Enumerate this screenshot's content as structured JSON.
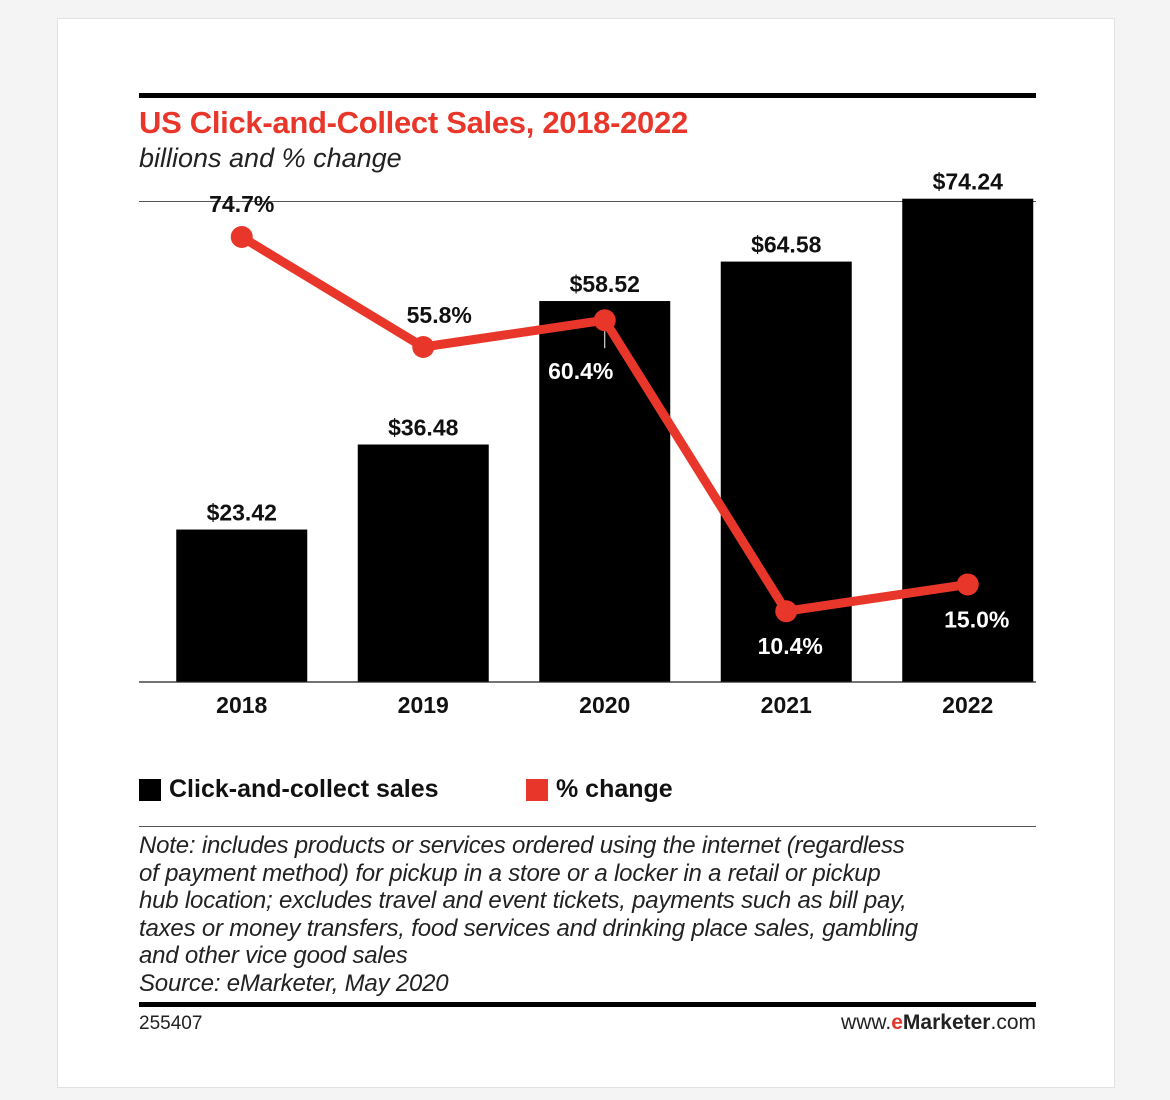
{
  "header": {
    "title": "US Click-and-Collect Sales, 2018-2022",
    "subtitle": "billions and % change"
  },
  "chart_data": {
    "type": "bar+line",
    "categories": [
      "2018",
      "2019",
      "2020",
      "2021",
      "2022"
    ],
    "series": [
      {
        "name": "Click-and-collect sales",
        "kind": "bar",
        "color": "#000000",
        "values": [
          23.42,
          36.48,
          58.52,
          64.58,
          74.24
        ],
        "labels": [
          "$23.42",
          "$36.48",
          "$58.52",
          "$64.58",
          "$74.24"
        ]
      },
      {
        "name": "% change",
        "kind": "line",
        "color": "#e8372a",
        "values": [
          74.7,
          55.8,
          60.4,
          10.4,
          15.0
        ],
        "labels": [
          "74.7%",
          "55.8%",
          "60.4%",
          "10.4%",
          "15.0%"
        ]
      }
    ],
    "ylim_sales": [
      0,
      80
    ],
    "ylim_pct": [
      0,
      80
    ],
    "grid": false,
    "legend": "bottom-left"
  },
  "legend": {
    "sales_label": "Click-and-collect sales",
    "change_label": "% change"
  },
  "note": {
    "lines": [
      "Note: includes products or services ordered using the internet (regardless",
      "of payment method) for pickup in a store or a locker in a retail or pickup",
      "hub location; excludes travel and event tickets, payments such as bill pay,",
      "taxes or money transfers, food services and drinking place sales, gambling",
      "and other vice good sales"
    ],
    "source": "Source: eMarketer, May 2020"
  },
  "footer": {
    "chart_id": "255407",
    "site_prefix": "www.",
    "site_e": "e",
    "site_brand": "Marketer",
    "site_suffix": ".com"
  },
  "colors": {
    "accent": "#e8372a",
    "bar": "#000000"
  }
}
